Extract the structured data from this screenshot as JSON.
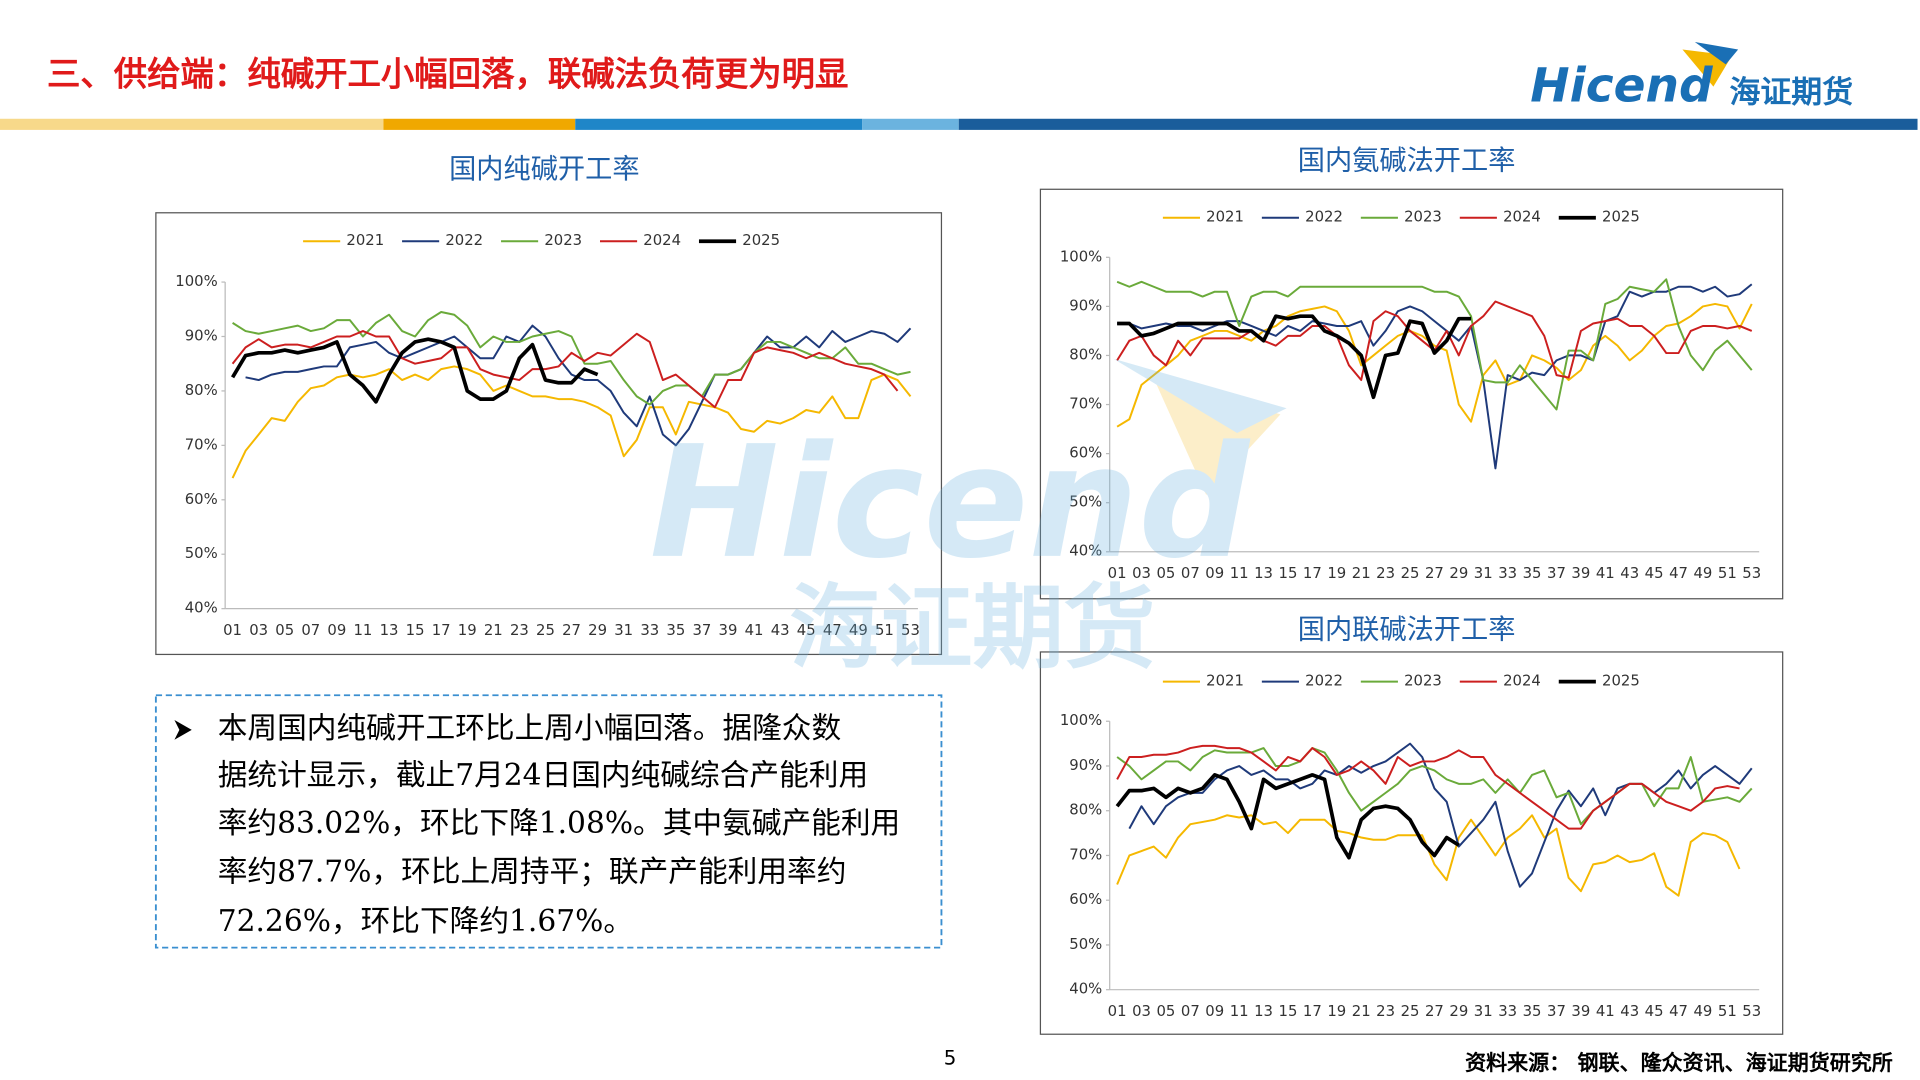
{
  "header": {
    "title": "三、供给端：纯碱开工小幅回落，联碱法负荷更为明显"
  },
  "logo": {
    "brand": "Hicend",
    "cn": "海证期货"
  },
  "text_box": {
    "lines": [
      "本周国内纯碱开工环比上周小幅回落。据隆众数",
      "据统计显示，截止7月24日国内纯碱综合产能利用",
      "率约83.02%，环比下降1.08%。其中氨碱产能利用",
      "率约87.7%，环比上周持平；联产产能利用率约",
      "72.26%，环比下降约1.67%。"
    ]
  },
  "page_number": 5,
  "source": "资料来源： 钢联、隆众资讯、海证期货研究所",
  "chart_data": [
    {
      "type": "line",
      "title": "国内纯碱开工率",
      "categories": [
        "01",
        null,
        "03",
        null,
        "05",
        null,
        "07",
        null,
        "09",
        null,
        "11",
        null,
        "13",
        null,
        "15",
        null,
        "17",
        null,
        "19",
        null,
        "21",
        null,
        "23",
        null,
        "25",
        null,
        "27",
        null,
        "29",
        null,
        "31",
        null,
        "33",
        null,
        "35",
        null,
        "37",
        null,
        "39",
        null,
        "41",
        null,
        "43",
        null,
        "45",
        null,
        "47",
        null,
        "49",
        null,
        "51",
        null,
        "53"
      ],
      "ylim": [
        40,
        100
      ],
      "yticks": [
        {
          "value": 40,
          "label": "40%"
        },
        {
          "value": 50,
          "label": "50%"
        },
        {
          "value": 60,
          "label": "60%"
        },
        {
          "value": 70,
          "label": "70%"
        },
        {
          "value": 80,
          "label": "80%"
        },
        {
          "value": 90,
          "label": "90%"
        },
        {
          "value": 100,
          "label": "100%"
        }
      ],
      "grid": false,
      "series": [
        {
          "name": "2021",
          "color": "#f5b800",
          "values": [
            64,
            69,
            72,
            75,
            74.5,
            78,
            80.5,
            81,
            82.5,
            83,
            82.5,
            83,
            84,
            82,
            83,
            82,
            84,
            84.5,
            84,
            83,
            80,
            81,
            80,
            79,
            79,
            78.5,
            78.5,
            78,
            77,
            75.5,
            68,
            71,
            77,
            77,
            72,
            78,
            77.5,
            77,
            76,
            73,
            72.5,
            74.5,
            74,
            75,
            76.5,
            76,
            79,
            75,
            75,
            82,
            83,
            82,
            79
          ]
        },
        {
          "name": "2022",
          "color": "#1f3a7a",
          "values": [
            null,
            82.5,
            82,
            83,
            83.5,
            83.5,
            84,
            84.5,
            84.5,
            88,
            88.5,
            89,
            87,
            86,
            87,
            88,
            89,
            90,
            88,
            86,
            86,
            90,
            89,
            92,
            90,
            86,
            83,
            82,
            82,
            80,
            76,
            73.5,
            79,
            72,
            70,
            73,
            78,
            83,
            83,
            84,
            87,
            90,
            88,
            88,
            90,
            88,
            91,
            89,
            90,
            91,
            90.5,
            89,
            91.5
          ]
        },
        {
          "name": "2023",
          "color": "#6aaa3a",
          "values": [
            92.5,
            91,
            90.5,
            91,
            91.5,
            92,
            91,
            91.5,
            93,
            93,
            90,
            92.5,
            94,
            91,
            90,
            93,
            94.5,
            94,
            92,
            88,
            90,
            89,
            89,
            90,
            90.5,
            91,
            90,
            85,
            85,
            85.5,
            82,
            79,
            77.5,
            80,
            81,
            81,
            79,
            83,
            83,
            84,
            87,
            89,
            89,
            88,
            87,
            86,
            86,
            88,
            85,
            85,
            84,
            83,
            83.5
          ]
        },
        {
          "name": "2024",
          "color": "#cc1f1f",
          "values": [
            85,
            88,
            89.5,
            88,
            88.5,
            88.5,
            88,
            89,
            90,
            90,
            91,
            90,
            90,
            86,
            85,
            85.5,
            86,
            88,
            88,
            84,
            83,
            82.5,
            82,
            84,
            84,
            84.5,
            87,
            85.5,
            87,
            86.5,
            88.5,
            90.5,
            89,
            82,
            83,
            81,
            79,
            77,
            82,
            82,
            87,
            88,
            87.5,
            87,
            86,
            87,
            86,
            85,
            84.5,
            84,
            83,
            80,
            null
          ]
        },
        {
          "name": "2025",
          "color": "#000000",
          "values": [
            82.5,
            86.5,
            87,
            87,
            87.5,
            87,
            87.5,
            88,
            89,
            83,
            81,
            78,
            83,
            87,
            89,
            89.5,
            89,
            88,
            80,
            78.5,
            78.5,
            80,
            86,
            88.5,
            82,
            81.5,
            81.5,
            84,
            83,
            null,
            null,
            null,
            null,
            null,
            null,
            null,
            null,
            null,
            null,
            null,
            null,
            null,
            null,
            null,
            null,
            null,
            null,
            null,
            null,
            null,
            null,
            null,
            null
          ]
        }
      ]
    },
    {
      "type": "line",
      "title": "国内氨碱法开工率",
      "categories": [
        "01",
        null,
        "03",
        null,
        "05",
        null,
        "07",
        null,
        "09",
        null,
        "11",
        null,
        "13",
        null,
        "15",
        null,
        "17",
        null,
        "19",
        null,
        "21",
        null,
        "23",
        null,
        "25",
        null,
        "27",
        null,
        "29",
        null,
        "31",
        null,
        "33",
        null,
        "35",
        null,
        "37",
        null,
        "39",
        null,
        "41",
        null,
        "43",
        null,
        "45",
        null,
        "47",
        null,
        "49",
        null,
        "51",
        null,
        "53"
      ],
      "ylim": [
        40,
        100
      ],
      "yticks": [
        {
          "value": 40,
          "label": "40%"
        },
        {
          "value": 50,
          "label": "50%"
        },
        {
          "value": 60,
          "label": "60%"
        },
        {
          "value": 70,
          "label": "70%"
        },
        {
          "value": 80,
          "label": "80%"
        },
        {
          "value": 90,
          "label": "90%"
        },
        {
          "value": 100,
          "label": "100%"
        }
      ],
      "grid": false,
      "series": [
        {
          "name": "2021",
          "color": "#f5b800",
          "values": [
            65.5,
            67,
            74,
            76,
            78,
            80,
            83,
            84,
            85,
            85,
            84,
            83,
            85,
            86,
            88,
            89,
            89.5,
            90,
            89,
            85,
            78,
            80,
            82,
            84,
            85,
            84,
            82,
            81,
            70,
            66.5,
            76,
            79,
            74,
            75,
            80,
            79,
            77.5,
            75,
            77,
            82,
            84,
            82,
            79,
            81,
            84,
            86,
            86.5,
            88,
            90,
            90.5,
            90,
            85.5,
            90.5
          ]
        },
        {
          "name": "2022",
          "color": "#1f3a7a",
          "values": [
            86.5,
            86.5,
            85.5,
            86,
            86.5,
            86,
            86,
            85,
            86,
            87,
            87,
            86,
            85,
            84,
            86,
            85,
            87,
            86.5,
            86,
            86,
            87,
            82,
            85,
            89,
            90,
            89,
            87,
            85,
            83,
            86,
            75,
            57,
            76,
            75,
            76.5,
            76,
            79,
            80,
            80,
            79,
            87,
            88,
            93,
            92,
            93,
            93,
            94,
            94,
            93,
            94,
            92,
            92.5,
            94.5
          ]
        },
        {
          "name": "2023",
          "color": "#6aaa3a",
          "values": [
            95,
            94,
            95,
            94,
            93,
            93,
            93,
            92,
            93,
            93,
            86,
            92,
            93,
            93,
            92,
            94,
            94,
            94,
            94,
            94,
            94,
            94,
            94,
            94,
            94,
            94,
            93,
            93,
            92,
            88,
            75,
            74.5,
            74.5,
            78,
            75,
            72,
            69,
            81,
            81,
            79,
            90.5,
            91.5,
            94,
            93.5,
            93,
            95.5,
            86,
            80,
            77,
            81,
            83,
            80,
            77
          ]
        },
        {
          "name": "2024",
          "color": "#cc1f1f",
          "values": [
            79,
            83,
            84,
            80,
            78,
            83,
            80,
            83.5,
            83.5,
            83.5,
            83.5,
            85,
            83,
            82,
            84,
            84,
            86,
            86,
            84,
            78,
            75,
            87,
            89,
            88,
            85,
            83,
            81,
            85,
            80,
            86,
            88,
            91,
            90,
            89,
            88,
            84,
            76,
            75.5,
            85,
            86.5,
            87,
            87.5,
            86,
            86,
            84,
            80.5,
            80.5,
            85,
            86,
            86,
            85.5,
            86,
            85
          ]
        },
        {
          "name": "2025",
          "color": "#000000",
          "values": [
            86.5,
            86.5,
            84,
            84.5,
            85.5,
            86.5,
            86.5,
            86.5,
            86.5,
            86.5,
            85,
            85,
            83,
            88,
            87.5,
            88,
            88,
            85,
            84,
            82.5,
            80,
            71.5,
            80,
            80.5,
            87,
            86.5,
            80.5,
            83,
            87.5,
            87.5,
            null,
            null,
            null,
            null,
            null,
            null,
            null,
            null,
            null,
            null,
            null,
            null,
            null,
            null,
            null,
            null,
            null,
            null,
            null,
            null,
            null,
            null,
            null
          ]
        }
      ]
    },
    {
      "type": "line",
      "title": "国内联碱法开工率",
      "categories": [
        "01",
        null,
        "03",
        null,
        "05",
        null,
        "07",
        null,
        "09",
        null,
        "11",
        null,
        "13",
        null,
        "15",
        null,
        "17",
        null,
        "19",
        null,
        "21",
        null,
        "23",
        null,
        "25",
        null,
        "27",
        null,
        "29",
        null,
        "31",
        null,
        "33",
        null,
        "35",
        null,
        "37",
        null,
        "39",
        null,
        "41",
        null,
        "43",
        null,
        "45",
        null,
        "47",
        null,
        "49",
        null,
        "51",
        null,
        "53"
      ],
      "ylim": [
        40,
        100
      ],
      "yticks": [
        {
          "value": 40,
          "label": "40%"
        },
        {
          "value": 50,
          "label": "50%"
        },
        {
          "value": 60,
          "label": "60%"
        },
        {
          "value": 70,
          "label": "70%"
        },
        {
          "value": 80,
          "label": "80%"
        },
        {
          "value": 90,
          "label": "90%"
        },
        {
          "value": 100,
          "label": "100%"
        }
      ],
      "grid": false,
      "series": [
        {
          "name": "2021",
          "color": "#f5b800",
          "values": [
            63.5,
            70,
            71,
            72,
            69.5,
            74,
            77,
            77.5,
            78,
            79,
            78.5,
            79,
            77,
            77.5,
            75,
            78,
            78,
            78,
            75.5,
            75,
            74,
            73.5,
            73.5,
            74.5,
            74.5,
            74.5,
            68,
            64.5,
            74,
            78,
            74,
            70,
            74,
            76,
            79,
            74,
            76,
            65,
            62,
            68,
            68.5,
            70,
            68.5,
            69,
            70.5,
            63,
            61,
            73,
            75,
            74.5,
            73,
            67,
            null
          ]
        },
        {
          "name": "2022",
          "color": "#1f3a7a",
          "values": [
            null,
            76,
            81,
            77,
            81,
            83,
            84,
            84,
            87,
            89,
            90,
            88,
            89,
            87,
            87,
            85,
            86,
            89,
            88,
            90,
            88.5,
            90,
            91,
            93,
            95,
            92,
            85,
            82,
            72,
            75,
            78,
            82,
            71,
            63,
            66,
            73,
            80,
            84.5,
            81,
            85,
            79,
            85,
            86,
            86,
            84,
            86,
            89,
            85,
            88,
            90,
            88,
            86,
            89.5
          ]
        },
        {
          "name": "2023",
          "color": "#6aaa3a",
          "values": [
            92,
            90,
            87,
            89,
            91,
            91,
            89,
            92,
            93.5,
            93,
            93,
            93,
            94,
            90,
            90,
            91,
            94,
            93,
            89,
            84,
            80,
            82,
            84,
            86,
            89,
            90,
            89,
            87,
            86,
            86,
            87,
            84,
            87,
            84,
            88,
            89,
            83,
            84,
            77,
            80,
            82,
            84,
            86,
            86,
            81,
            85,
            85,
            92,
            82,
            82.5,
            83,
            82,
            85
          ]
        },
        {
          "name": "2024",
          "color": "#cc1f1f",
          "values": [
            87,
            92,
            92,
            92.5,
            92.5,
            93,
            94,
            94.5,
            94.5,
            94,
            94,
            93,
            91,
            89,
            92,
            91,
            94,
            92,
            88,
            89,
            91,
            89,
            86,
            92,
            90,
            91,
            91,
            92,
            93.5,
            92,
            92,
            88,
            86,
            84,
            82,
            80,
            78,
            76,
            76,
            80,
            82,
            84,
            86,
            86,
            84,
            82,
            81,
            80,
            82,
            85,
            85.5,
            85,
            null
          ]
        },
        {
          "name": "2025",
          "color": "#000000",
          "values": [
            81,
            84.5,
            84.5,
            85,
            83,
            85,
            84,
            85,
            88,
            87,
            82,
            76,
            87,
            85,
            86,
            87,
            88,
            87,
            74,
            69.5,
            78,
            80.5,
            81,
            80.5,
            78,
            73,
            70,
            74,
            72.3,
            null,
            null,
            null,
            null,
            null,
            null,
            null,
            null,
            null,
            null,
            null,
            null,
            null,
            null,
            null,
            null,
            null,
            null,
            null,
            null,
            null,
            null,
            null,
            null
          ]
        }
      ]
    }
  ]
}
